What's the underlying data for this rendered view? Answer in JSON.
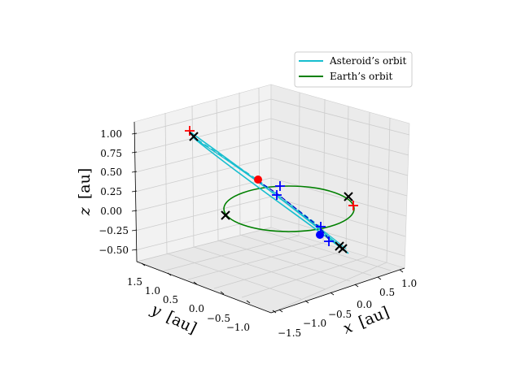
{
  "chart_data": {
    "type": "line",
    "projection": "3d",
    "grid": true,
    "legend_position": "top-right",
    "axes": {
      "x": {
        "label_var": "x",
        "label_unit": "[au]",
        "range": [
          -1.5,
          1.0
        ],
        "ticks": [
          "−1.5",
          "−1.0",
          "−0.5",
          "0.0",
          "0.5",
          "1.0"
        ]
      },
      "y": {
        "label_var": "y",
        "label_unit": "[au]",
        "range": [
          -1.0,
          1.5
        ],
        "ticks": [
          "−1.0",
          "−0.5",
          "0.0",
          "0.5",
          "1.0",
          "1.5"
        ]
      },
      "z": {
        "label_var": "z",
        "label_unit": "[au]",
        "range": [
          -0.5,
          1.0
        ],
        "ticks": [
          "−0.50",
          "−0.25",
          "0.00",
          "0.25",
          "0.50",
          "0.75",
          "1.00"
        ]
      }
    },
    "series": [
      {
        "name": "Asteroid’s orbit",
        "color": "#17becf",
        "shape": "closed orbit (solid) plus dashed segment",
        "approx_points": [
          [
            -1.05,
            0.9,
            1.0
          ],
          [
            0.1,
            0.0,
            0.35
          ],
          [
            1.05,
            -0.9,
            -0.5
          ]
        ]
      },
      {
        "name": "Earth’s orbit",
        "color": "#008000",
        "shape": "unit circle in z = 0 plane",
        "radius": 1.0
      }
    ],
    "markers": [
      {
        "style": "circle",
        "color": "#ff0000",
        "label_text": ""
      },
      {
        "style": "circle",
        "color": "#0000ff",
        "label_text": ""
      },
      {
        "style": "plus",
        "color": "#ff0000",
        "count": 2
      },
      {
        "style": "plus",
        "color": "#0000ff",
        "count": 4
      },
      {
        "style": "x",
        "color": "#000000",
        "count": 6
      }
    ],
    "legend": [
      {
        "label": "Asteroid’s orbit",
        "color": "#17becf"
      },
      {
        "label": "Earth’s orbit",
        "color": "#008000"
      }
    ],
    "colors": {
      "asteroid": "#17becf",
      "earth": "#008000",
      "dashed_segment": "#17becf",
      "blue_line": "#0000cc",
      "marker_red": "#ff0000",
      "marker_blue": "#0000ff",
      "marker_black": "#000000",
      "pane": "#f2f2f2",
      "grid": "#d0d0d0"
    }
  }
}
